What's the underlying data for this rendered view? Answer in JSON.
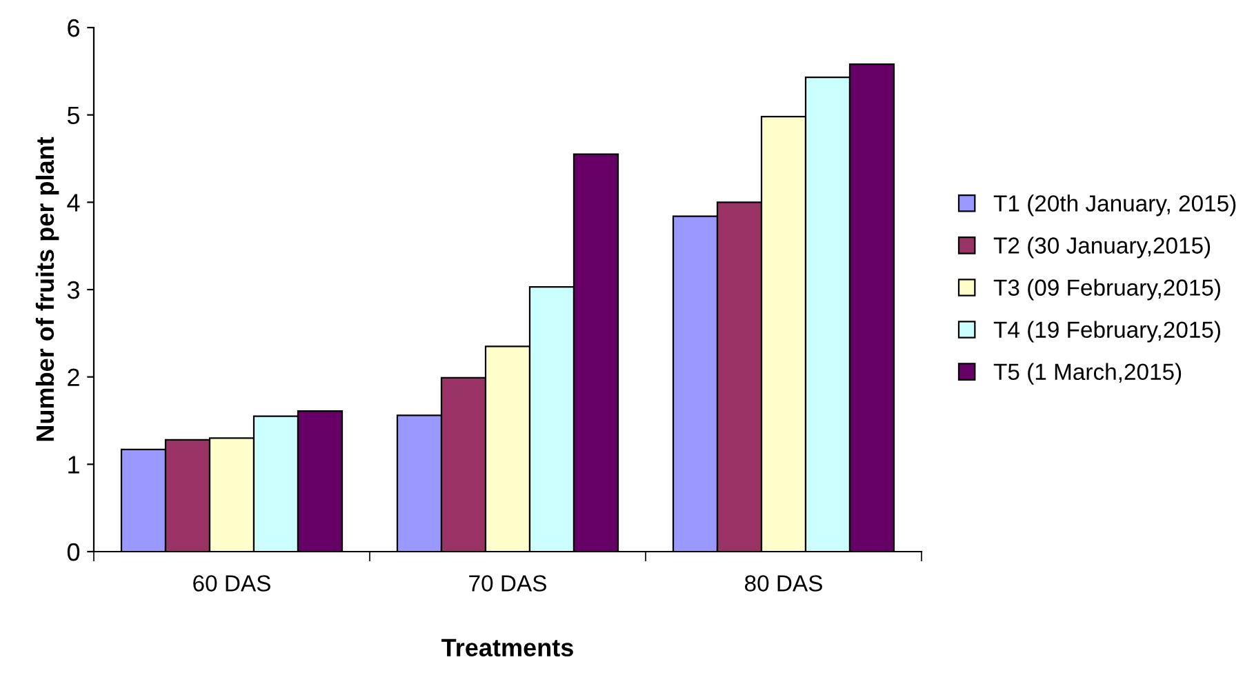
{
  "chart_data": {
    "type": "bar",
    "xlabel": "Treatments",
    "ylabel": "Number of fruits per plant",
    "categories": [
      "60 DAS",
      "70 DAS",
      "80 DAS"
    ],
    "series": [
      {
        "name": "T1 (20th January, 2015)",
        "color": "#9999ff",
        "values": [
          1.17,
          1.56,
          3.84
        ]
      },
      {
        "name": "T2 (30 January,2015)",
        "color": "#993366",
        "values": [
          1.28,
          1.99,
          4.0
        ]
      },
      {
        "name": "T3 (09 February,2015)",
        "color": "#ffffcc",
        "values": [
          1.3,
          2.35,
          4.98
        ]
      },
      {
        "name": "T4 (19 February,2015)",
        "color": "#ccffff",
        "values": [
          1.55,
          3.03,
          5.43
        ]
      },
      {
        "name": "T5 (1 March,2015)",
        "color": "#660066",
        "values": [
          1.61,
          4.55,
          5.58
        ]
      }
    ],
    "ylim": [
      0,
      6
    ],
    "yticks": [
      0,
      1,
      2,
      3,
      4,
      5,
      6
    ],
    "grid": false,
    "legend": "right"
  }
}
